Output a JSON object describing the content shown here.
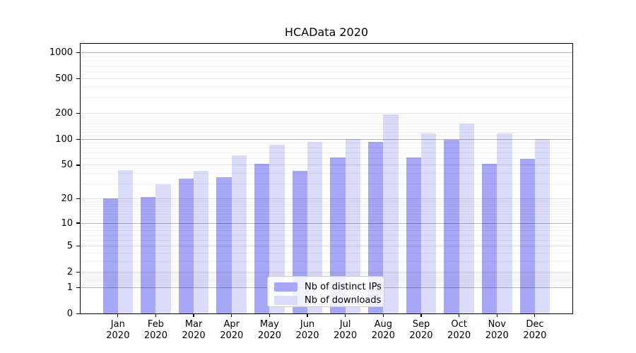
{
  "chart_data": {
    "type": "bar",
    "title": "HCAData 2020",
    "categories": [
      "Jan",
      "Feb",
      "Mar",
      "Apr",
      "May",
      "Jun",
      "Jul",
      "Aug",
      "Sep",
      "Oct",
      "Nov",
      "Dec"
    ],
    "year_label": "2020",
    "series": [
      {
        "name": "Nb of distinct IPs",
        "color": "#a7a7f7",
        "values": [
          20,
          21,
          35,
          36,
          52,
          43,
          61,
          93,
          62,
          99,
          52,
          59
        ]
      },
      {
        "name": "Nb of downloads",
        "color": "#dbdbfa",
        "values": [
          44,
          30,
          43,
          65,
          87,
          94,
          101,
          193,
          117,
          151,
          116,
          100
        ]
      }
    ],
    "y_ticks": [
      0,
      1,
      2,
      5,
      10,
      20,
      50,
      100,
      200,
      500,
      1000
    ],
    "y_scale": "log(v+1)",
    "ylim": [
      0,
      1000
    ],
    "grid": "on",
    "legend_position": "inside-bottom-center"
  }
}
